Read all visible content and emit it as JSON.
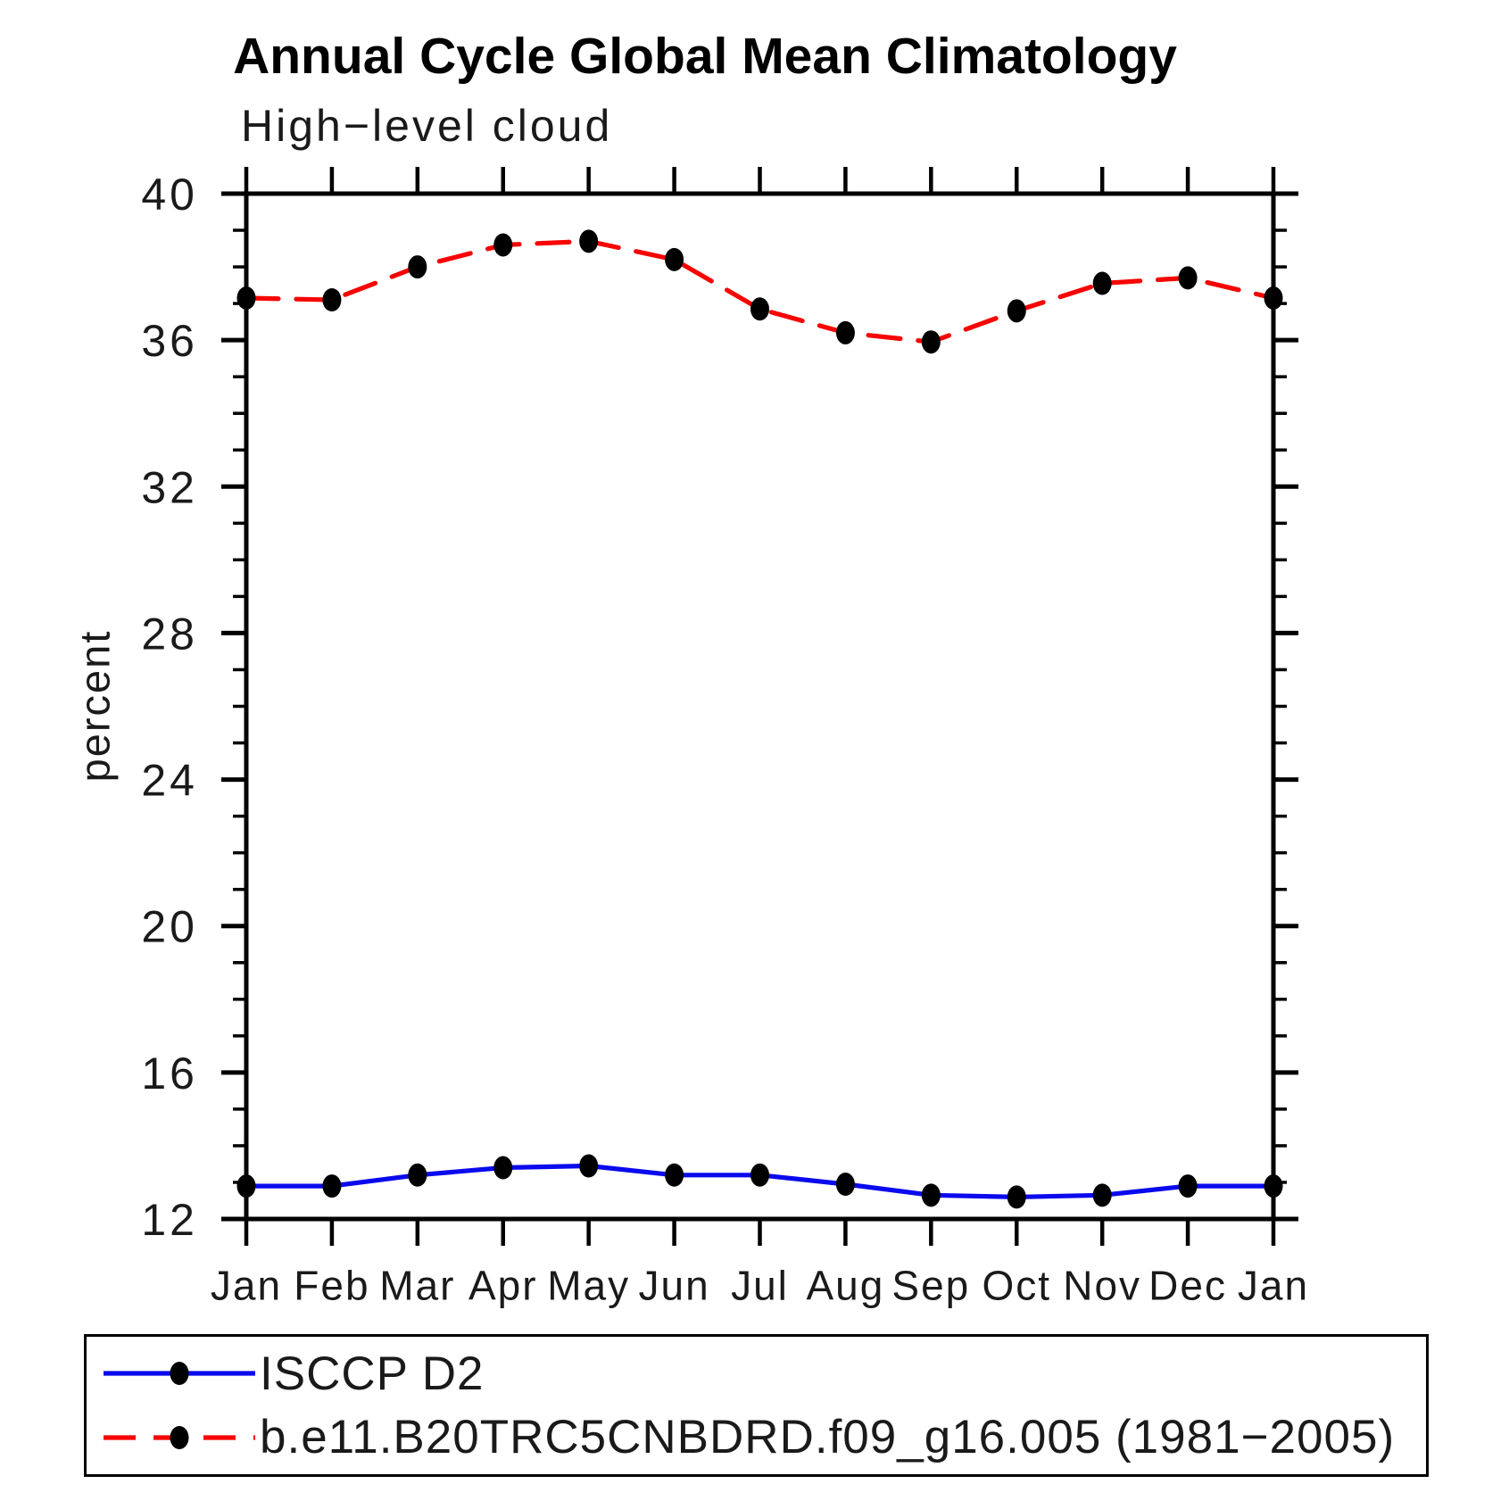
{
  "page": {
    "background": "#ffffff",
    "text_color": "#000000"
  },
  "chart_data": {
    "type": "line",
    "title": "Annual Cycle Global Mean Climatology",
    "subtitle": "High−level cloud",
    "xlabel": "",
    "ylabel": "percent",
    "ylim": [
      12,
      40
    ],
    "y_major_ticks": [
      12,
      16,
      20,
      24,
      28,
      32,
      36,
      40
    ],
    "y_minor_step": 1,
    "categories": [
      "Jan",
      "Feb",
      "Mar",
      "Apr",
      "May",
      "Jun",
      "Jul",
      "Aug",
      "Sep",
      "Oct",
      "Nov",
      "Dec",
      "Jan"
    ],
    "grid": false,
    "legend_position": "bottom",
    "frame_color": "#000000",
    "series": [
      {
        "name": "ISCCP D2",
        "color": "#0a0aee",
        "line_style": "solid",
        "marker": "filled-circle",
        "marker_color": "#000000",
        "values": [
          12.9,
          12.9,
          13.2,
          13.4,
          13.45,
          13.2,
          13.2,
          12.95,
          12.65,
          12.6,
          12.65,
          12.9,
          12.9
        ]
      },
      {
        "name": "b.e11.B20TRC5CNBDRD.f09_g16.005 (1981−2005)",
        "color": "#f70400",
        "line_style": "dashed",
        "marker": "filled-circle",
        "marker_color": "#000000",
        "values": [
          37.15,
          37.1,
          38.0,
          38.6,
          38.7,
          38.2,
          36.85,
          36.2,
          35.95,
          36.8,
          37.55,
          37.7,
          37.15
        ]
      }
    ]
  }
}
